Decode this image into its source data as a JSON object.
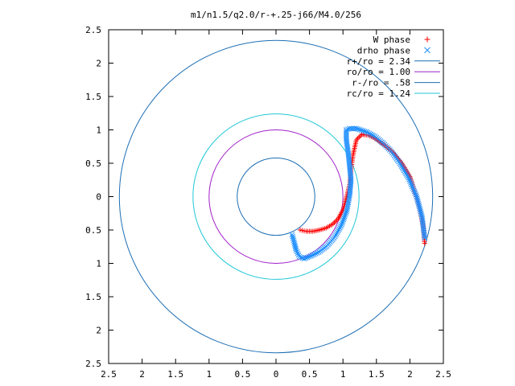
{
  "chart_data": {
    "type": "scatter",
    "title": "m1/n1.5/q2.0/r-+.25-j66/M4.0/256",
    "xlim": [
      -2.5,
      2.5
    ],
    "ylim": [
      -2.5,
      2.5
    ],
    "xticks": [
      -2.5,
      -2,
      -1.5,
      -1,
      -0.5,
      0,
      0.5,
      1,
      1.5,
      2,
      2.5
    ],
    "yticks": [
      -2.5,
      -2,
      -1.5,
      -1,
      -0.5,
      0,
      0.5,
      1,
      1.5,
      2,
      2.5
    ],
    "xtick_labels": [
      "2.5",
      "2",
      "1.5",
      "1",
      "0.5",
      "0",
      "0.5",
      "1",
      "1.5",
      "2",
      "2.5"
    ],
    "ytick_labels": [
      "2.5",
      "2",
      "1.5",
      "1",
      "0.5",
      "0",
      "0.5",
      "1",
      "1.5",
      "2",
      "2.5"
    ],
    "grid": false,
    "legend_position": "top-right",
    "series": [
      {
        "name": "W phase",
        "kind": "points",
        "marker": "plus",
        "color": "#ff0000",
        "x": [
          0.36,
          0.45,
          0.55,
          0.65,
          0.75,
          0.85,
          0.93,
          1.0,
          1.05,
          1.1,
          1.12,
          1.15,
          1.2,
          1.28,
          1.38,
          1.5,
          1.62,
          1.75,
          1.88,
          2.0,
          2.08,
          2.15,
          2.2,
          2.22
        ],
        "y": [
          -0.5,
          -0.52,
          -0.52,
          -0.5,
          -0.47,
          -0.41,
          -0.33,
          -0.2,
          -0.02,
          0.18,
          0.4,
          0.62,
          0.85,
          0.93,
          0.92,
          0.86,
          0.77,
          0.66,
          0.5,
          0.3,
          0.05,
          -0.2,
          -0.45,
          -0.7
        ]
      },
      {
        "name": "drho phase",
        "kind": "points",
        "marker": "cross",
        "color": "#1e8fff",
        "x": [
          0.24,
          0.27,
          0.3,
          0.35,
          0.42,
          0.52,
          0.64,
          0.76,
          0.88,
          0.98,
          1.06,
          1.1,
          1.12,
          1.1,
          1.08,
          1.05,
          1.05,
          1.1,
          1.2,
          1.35,
          1.48,
          1.6,
          1.72,
          1.85,
          1.98,
          2.1,
          2.18,
          2.22
        ],
        "y": [
          -0.57,
          -0.68,
          -0.8,
          -0.9,
          -0.93,
          -0.89,
          -0.83,
          -0.74,
          -0.6,
          -0.42,
          -0.2,
          0.02,
          0.25,
          0.45,
          0.65,
          0.85,
          1.0,
          1.02,
          1.02,
          0.97,
          0.9,
          0.8,
          0.68,
          0.5,
          0.28,
          0.0,
          -0.3,
          -0.62
        ]
      },
      {
        "name": "r+/ro = 2.34",
        "kind": "circle",
        "r": 2.34,
        "color": "#1e6eb4"
      },
      {
        "name": "ro/ro = 1.00",
        "kind": "circle",
        "r": 1.0,
        "color": "#a020c8"
      },
      {
        "name": "r-/ro = .58",
        "kind": "circle",
        "r": 0.58,
        "color": "#1e6eb4"
      },
      {
        "name": "rc/ro = 1.24",
        "kind": "circle",
        "r": 1.24,
        "color": "#20c8d8"
      }
    ]
  }
}
